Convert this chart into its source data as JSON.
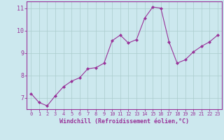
{
  "xlabel": "Windchill (Refroidissement éolien,°C)",
  "x": [
    0,
    1,
    2,
    3,
    4,
    5,
    6,
    7,
    8,
    9,
    10,
    11,
    12,
    13,
    14,
    15,
    16,
    17,
    18,
    19,
    20,
    21,
    22,
    23
  ],
  "y": [
    7.2,
    6.8,
    6.65,
    7.1,
    7.5,
    7.75,
    7.9,
    8.3,
    8.35,
    8.55,
    9.55,
    9.8,
    9.45,
    9.6,
    10.55,
    11.05,
    11.0,
    9.5,
    8.55,
    8.7,
    9.05,
    9.3,
    9.5,
    9.8
  ],
  "line_color": "#993399",
  "marker": "D",
  "marker_size": 2.0,
  "bg_color": "#cce8ee",
  "grid_color": "#aacccc",
  "axes_color": "#993399",
  "label_color": "#993399",
  "tick_color": "#993399",
  "ylim": [
    6.5,
    11.3
  ],
  "yticks": [
    7,
    8,
    9,
    10,
    11
  ],
  "xlim": [
    -0.5,
    23.5
  ],
  "xticks": [
    0,
    1,
    2,
    3,
    4,
    5,
    6,
    7,
    8,
    9,
    10,
    11,
    12,
    13,
    14,
    15,
    16,
    17,
    18,
    19,
    20,
    21,
    22,
    23
  ],
  "xlabel_fontsize": 6.0,
  "xtick_fontsize": 5.0,
  "ytick_fontsize": 6.0
}
